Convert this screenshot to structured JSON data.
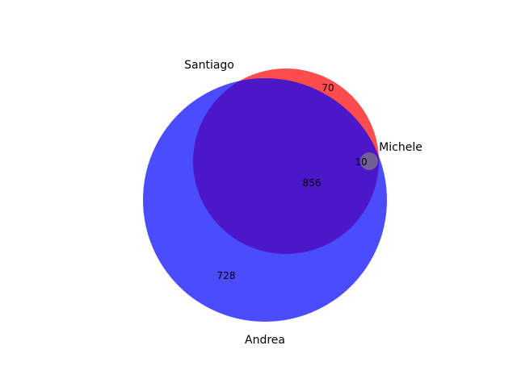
{
  "chart_data": {
    "type": "venn",
    "sets": [
      {
        "name": "Santiago",
        "color": "#ff0000"
      },
      {
        "name": "Andrea",
        "color": "#0000ff"
      },
      {
        "name": "Michele",
        "color": "#808080"
      }
    ],
    "regions": [
      {
        "sets": [
          "Santiago"
        ],
        "value": 70
      },
      {
        "sets": [
          "Andrea"
        ],
        "value": 728
      },
      {
        "sets": [
          "Santiago",
          "Andrea"
        ],
        "value": 856
      },
      {
        "sets": [
          "Santiago",
          "Andrea",
          "Michele"
        ],
        "value": 10
      }
    ]
  }
}
